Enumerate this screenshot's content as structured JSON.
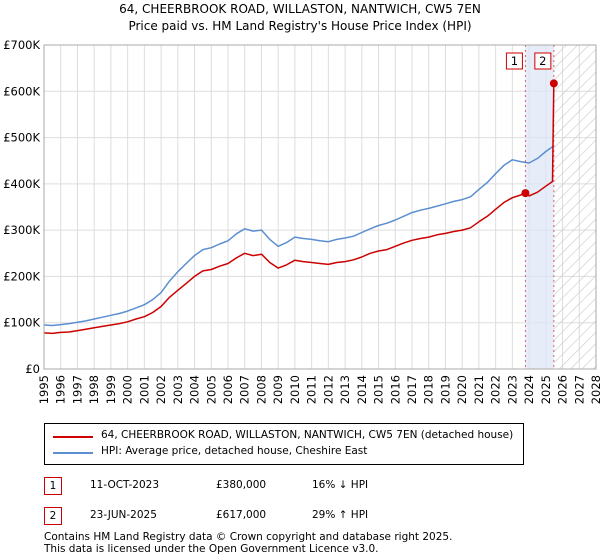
{
  "title_line1": "64, CHEERBROOK ROAD, WILLASTON, NANTWICH, CW5 7EN",
  "title_line2": "Price paid vs. HM Land Registry's House Price Index (HPI)",
  "chart_data": {
    "type": "line",
    "xlim": [
      1995,
      2028
    ],
    "ylim": [
      0,
      700000
    ],
    "y_ticks": [
      0,
      100000,
      200000,
      300000,
      400000,
      500000,
      600000,
      700000
    ],
    "y_tick_labels": [
      "£0",
      "£100K",
      "£200K",
      "£300K",
      "£400K",
      "£500K",
      "£600K",
      "£700K"
    ],
    "x_ticks": [
      1995,
      1996,
      1997,
      1998,
      1999,
      2000,
      2001,
      2002,
      2003,
      2004,
      2005,
      2006,
      2007,
      2008,
      2009,
      2010,
      2011,
      2012,
      2013,
      2014,
      2015,
      2016,
      2017,
      2018,
      2019,
      2020,
      2021,
      2022,
      2023,
      2024,
      2025,
      2026,
      2027,
      2028
    ],
    "grid": true,
    "shaded_span": [
      2023.78,
      2025.48
    ],
    "hatched_after": 2025.48,
    "series": [
      {
        "name": "64, CHEERBROOK ROAD, WILLASTON, NANTWICH, CW5 7EN (detached house)",
        "color": "#cc0000",
        "x": [
          1995.0,
          1995.5,
          1996.0,
          1996.5,
          1997.0,
          1997.5,
          1998.0,
          1998.5,
          1999.0,
          1999.5,
          2000.0,
          2000.5,
          2001.0,
          2001.5,
          2002.0,
          2002.5,
          2003.0,
          2003.5,
          2004.0,
          2004.5,
          2005.0,
          2005.5,
          2006.0,
          2006.5,
          2007.0,
          2007.5,
          2008.0,
          2008.5,
          2009.0,
          2009.5,
          2010.0,
          2010.5,
          2011.0,
          2011.5,
          2012.0,
          2012.5,
          2013.0,
          2013.5,
          2014.0,
          2014.5,
          2015.0,
          2015.5,
          2016.0,
          2016.5,
          2017.0,
          2017.5,
          2018.0,
          2018.5,
          2019.0,
          2019.5,
          2020.0,
          2020.5,
          2021.0,
          2021.5,
          2022.0,
          2022.5,
          2023.0,
          2023.5,
          2023.78,
          2024.0,
          2024.5,
          2025.0,
          2025.4,
          2025.48
        ],
        "values": [
          78000,
          77000,
          79000,
          80000,
          83000,
          86000,
          89000,
          92000,
          95000,
          98000,
          102000,
          108000,
          113000,
          122000,
          135000,
          155000,
          170000,
          185000,
          200000,
          212000,
          215000,
          222000,
          228000,
          240000,
          250000,
          245000,
          248000,
          230000,
          218000,
          225000,
          235000,
          232000,
          230000,
          228000,
          226000,
          230000,
          232000,
          236000,
          242000,
          250000,
          255000,
          258000,
          265000,
          272000,
          278000,
          282000,
          285000,
          290000,
          293000,
          297000,
          300000,
          305000,
          318000,
          330000,
          345000,
          360000,
          370000,
          376000,
          380000,
          374000,
          382000,
          395000,
          405000,
          617000
        ]
      },
      {
        "name": "HPI: Average price, detached house, Cheshire East",
        "color": "#5b8fd1",
        "x": [
          1995.0,
          1995.5,
          1996.0,
          1996.5,
          1997.0,
          1997.5,
          1998.0,
          1998.5,
          1999.0,
          1999.5,
          2000.0,
          2000.5,
          2001.0,
          2001.5,
          2002.0,
          2002.5,
          2003.0,
          2003.5,
          2004.0,
          2004.5,
          2005.0,
          2005.5,
          2006.0,
          2006.5,
          2007.0,
          2007.5,
          2008.0,
          2008.5,
          2009.0,
          2009.5,
          2010.0,
          2010.5,
          2011.0,
          2011.5,
          2012.0,
          2012.5,
          2013.0,
          2013.5,
          2014.0,
          2014.5,
          2015.0,
          2015.5,
          2016.0,
          2016.5,
          2017.0,
          2017.5,
          2018.0,
          2018.5,
          2019.0,
          2019.5,
          2020.0,
          2020.5,
          2021.0,
          2021.5,
          2022.0,
          2022.5,
          2023.0,
          2023.5,
          2024.0,
          2024.5,
          2025.0,
          2025.4
        ],
        "values": [
          95000,
          94000,
          96000,
          98000,
          101000,
          104000,
          108000,
          112000,
          116000,
          120000,
          125000,
          132000,
          139000,
          150000,
          165000,
          190000,
          210000,
          228000,
          245000,
          258000,
          262000,
          270000,
          277000,
          292000,
          303000,
          298000,
          300000,
          280000,
          265000,
          273000,
          285000,
          282000,
          280000,
          277000,
          275000,
          280000,
          283000,
          287000,
          295000,
          303000,
          310000,
          315000,
          322000,
          330000,
          338000,
          343000,
          347000,
          352000,
          357000,
          362000,
          366000,
          372000,
          388000,
          403000,
          422000,
          440000,
          452000,
          448000,
          445000,
          455000,
          470000,
          480000
        ]
      }
    ],
    "markers": [
      {
        "label": "1",
        "x": 2023.78,
        "value": 380000
      },
      {
        "label": "2",
        "x": 2025.48,
        "value": 617000
      }
    ]
  },
  "legend": {
    "entries": [
      {
        "label": "64, CHEERBROOK ROAD, WILLASTON, NANTWICH, CW5 7EN (detached house)",
        "color": "#cc0000"
      },
      {
        "label": "HPI: Average price, detached house, Cheshire East",
        "color": "#5b8fd1"
      }
    ]
  },
  "transactions": [
    {
      "num": "1",
      "date": "11-OCT-2023",
      "price": "£380,000",
      "hpi": "16% ↓ HPI"
    },
    {
      "num": "2",
      "date": "23-JUN-2025",
      "price": "£617,000",
      "hpi": "29% ↑ HPI"
    }
  ],
  "footer": {
    "line1": "Contains HM Land Registry data © Crown copyright and database right 2025.",
    "line2": "This data is licensed under the Open Government Licence v3.0."
  }
}
